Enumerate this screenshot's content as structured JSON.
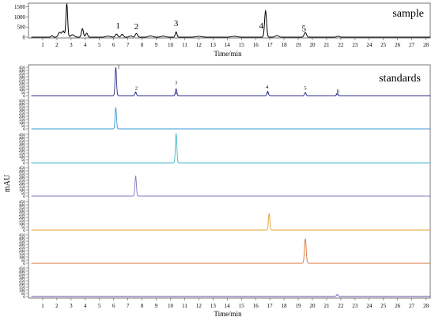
{
  "chart_data": [
    {
      "type": "line",
      "title": "sample",
      "xlabel": "Time/min",
      "ylabel": "",
      "xlim": [
        0,
        28.3
      ],
      "ylim": [
        0,
        1600
      ],
      "x_ticks": [
        1,
        2,
        3,
        4,
        5,
        6,
        7,
        8,
        9,
        10,
        11,
        12,
        13,
        14,
        15,
        16,
        17,
        18,
        19,
        20,
        21,
        22,
        23,
        24,
        25,
        26,
        27,
        28
      ],
      "y_ticks": [
        0,
        500,
        1000,
        1500
      ],
      "grid": false,
      "series": [
        {
          "color": "#000000",
          "peaks": [
            {
              "t": 1.65,
              "h": 80,
              "w": 0.06
            },
            {
              "t": 2.2,
              "h": 240,
              "w": 0.1
            },
            {
              "t": 2.45,
              "h": 300,
              "w": 0.08
            },
            {
              "t": 2.7,
              "h": 1650,
              "w": 0.06
            },
            {
              "t": 3.1,
              "h": 120,
              "w": 0.12
            },
            {
              "t": 3.8,
              "h": 420,
              "w": 0.07
            },
            {
              "t": 4.1,
              "h": 200,
              "w": 0.07
            },
            {
              "t": 5.6,
              "h": 50,
              "w": 0.15
            },
            {
              "t": 6.2,
              "h": 150,
              "w": 0.08
            },
            {
              "t": 6.6,
              "h": 140,
              "w": 0.08
            },
            {
              "t": 7.2,
              "h": 60,
              "w": 0.1
            },
            {
              "t": 7.6,
              "h": 180,
              "w": 0.08
            },
            {
              "t": 8.6,
              "h": 60,
              "w": 0.15
            },
            {
              "t": 9.5,
              "h": 50,
              "w": 0.15
            },
            {
              "t": 10.4,
              "h": 260,
              "w": 0.06
            },
            {
              "t": 12.0,
              "h": 40,
              "w": 0.2
            },
            {
              "t": 14.5,
              "h": 40,
              "w": 0.2
            },
            {
              "t": 16.7,
              "h": 1300,
              "w": 0.07
            },
            {
              "t": 17.5,
              "h": 80,
              "w": 0.12
            },
            {
              "t": 19.5,
              "h": 230,
              "w": 0.08
            },
            {
              "t": 21.8,
              "h": 40,
              "w": 0.1
            }
          ]
        }
      ],
      "annotations": [
        {
          "text": "1",
          "x": 6.3,
          "y": 430
        },
        {
          "text": "2",
          "x": 7.6,
          "y": 400
        },
        {
          "text": "3",
          "x": 10.4,
          "y": 550
        },
        {
          "text": "4",
          "x": 16.4,
          "y": 430
        },
        {
          "text": "5",
          "x": 19.4,
          "y": 300
        }
      ]
    },
    {
      "type": "line",
      "title": "standards",
      "xlabel": "Time/min",
      "ylabel": "mAU",
      "xlim": [
        0,
        28.3
      ],
      "ylim": [
        0,
        480
      ],
      "x_ticks": [
        1,
        2,
        3,
        4,
        5,
        6,
        7,
        8,
        9,
        10,
        11,
        12,
        13,
        14,
        15,
        16,
        17,
        18,
        19,
        20,
        21,
        22,
        23,
        24,
        25,
        26,
        27,
        28
      ],
      "y_ticks": [
        0,
        50,
        100,
        150,
        200,
        250,
        300,
        350,
        400,
        450
      ],
      "grid": false,
      "stacked": true,
      "series": [
        {
          "color": "#2c2c8c",
          "peaks": [
            {
              "t": 6.15,
              "h": 450,
              "w": 0.05
            },
            {
              "t": 7.55,
              "h": 60,
              "w": 0.05
            },
            {
              "t": 10.4,
              "h": 110,
              "w": 0.05
            },
            {
              "t": 16.85,
              "h": 70,
              "w": 0.05
            },
            {
              "t": 19.5,
              "h": 50,
              "w": 0.05
            },
            {
              "t": 21.75,
              "h": 25,
              "w": 0.05
            }
          ],
          "labels": [
            {
              "text": "1",
              "x": 6.35,
              "y": 430
            },
            {
              "text": "2",
              "x": 7.6,
              "y": 95
            },
            {
              "text": "3",
              "x": 10.4,
              "y": 180
            },
            {
              "text": "4",
              "x": 16.8,
              "y": 115
            },
            {
              "text": "5",
              "x": 19.5,
              "y": 95
            },
            {
              "text": "6",
              "x": 21.8,
              "y": 50
            }
          ]
        },
        {
          "color": "#3a98d0",
          "peaks": [
            {
              "t": 6.15,
              "h": 340,
              "w": 0.05
            }
          ]
        },
        {
          "color": "#44b8c4",
          "peaks": [
            {
              "t": 10.4,
              "h": 470,
              "w": 0.05
            }
          ]
        },
        {
          "color": "#8a76c0",
          "peaks": [
            {
              "t": 7.55,
              "h": 320,
              "w": 0.05
            }
          ]
        },
        {
          "color": "#e0a02c",
          "peaks": [
            {
              "t": 16.95,
              "h": 260,
              "w": 0.05
            }
          ]
        },
        {
          "color": "#d9773a",
          "peaks": [
            {
              "t": 19.5,
              "h": 390,
              "w": 0.06
            }
          ]
        },
        {
          "color": "#6a4ea2",
          "peaks": [
            {
              "t": 21.75,
              "h": 30,
              "w": 0.06
            }
          ]
        }
      ]
    }
  ]
}
